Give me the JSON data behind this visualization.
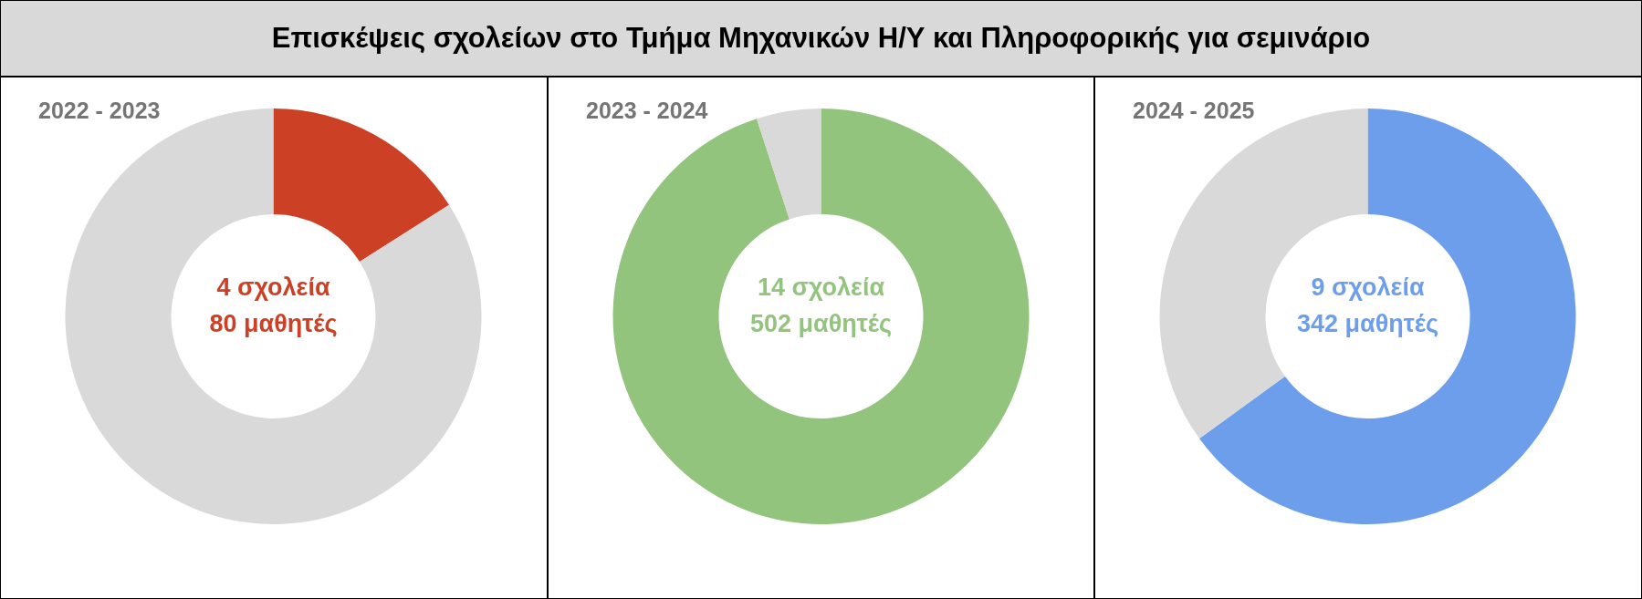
{
  "chart_data": [
    {
      "type": "donut",
      "title": "Επισκέψεις σχολείων στο Τμήμα Μηχανικών Η/Υ και Πληροφορικής για σεμινάριο",
      "subtitle": "2022 - 2023",
      "categories": [
        null,
        null
      ],
      "values": [
        16,
        84
      ],
      "colors": [
        "#cc4125",
        "#d9d9d9"
      ],
      "annotations": [
        "4 σχολεία",
        "80 μαθητές"
      ]
    },
    {
      "type": "donut",
      "subtitle": "2023 - 2024",
      "categories": [
        null,
        null
      ],
      "values": [
        95,
        5
      ],
      "colors": [
        "#93c47d",
        "#d9d9d9"
      ],
      "annotations": [
        "14 σχολεία",
        "502 μαθητές"
      ]
    },
    {
      "type": "donut",
      "subtitle": "2024 - 2025",
      "categories": [
        null,
        null
      ],
      "values": [
        65,
        35
      ],
      "colors": [
        "#6d9eeb",
        "#d9d9d9"
      ],
      "annotations": [
        "9 σχολεία",
        "342 μαθητές"
      ]
    }
  ]
}
